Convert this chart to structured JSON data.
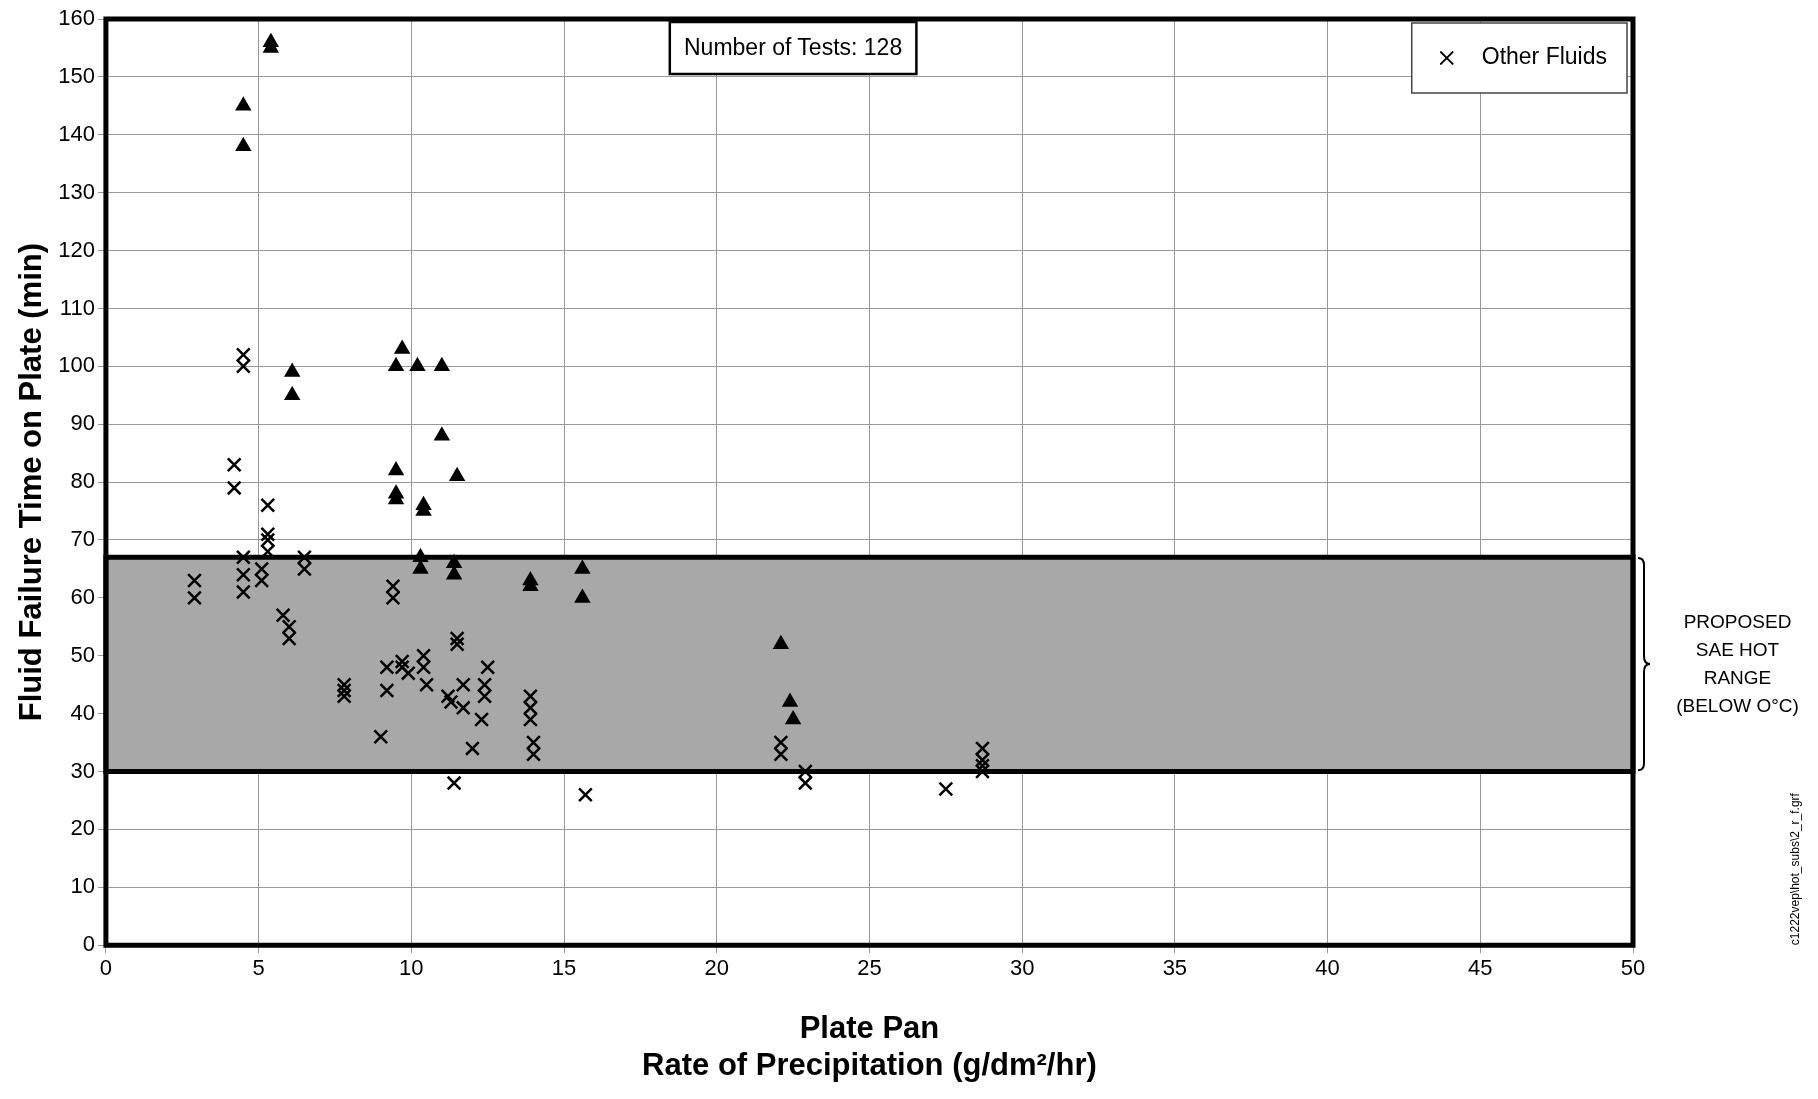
{
  "chart_data": {
    "type": "scatter",
    "xlabel": "Plate Pan\nRate of Precipitation (g/dm²/hr)",
    "ylabel": "Fluid Failure Time on Plate (min)",
    "xlim": [
      0,
      50
    ],
    "xticks": [
      0,
      5,
      10,
      15,
      20,
      25,
      30,
      35,
      40,
      45,
      50
    ],
    "ylim": [
      0,
      160
    ],
    "yticks": [
      0,
      10,
      20,
      30,
      40,
      50,
      60,
      70,
      80,
      90,
      100,
      110,
      120,
      130,
      140,
      150,
      160
    ],
    "grid": true,
    "legend": "top right",
    "series": [
      {
        "name": "Other Fluids",
        "color": "#000000",
        "marker": "cross",
        "x": [
          2.9,
          2.9,
          4.2,
          4.2,
          4.5,
          4.5,
          4.5,
          4.5,
          4.5,
          5.1,
          5.1,
          5.3,
          5.3,
          5.3,
          5.3,
          5.8,
          6.0,
          6.0,
          6.5,
          6.5,
          7.8,
          7.8,
          7.8,
          9.0,
          9.2,
          9.2,
          9.4,
          9.4,
          9.7,
          9.7,
          9.9,
          10.4,
          10.4,
          10.5,
          11.2,
          11.3,
          11.5,
          11.5,
          11.4,
          11.7,
          11.7,
          12.0,
          12.3,
          12.5,
          12.4,
          12.4,
          13.9,
          13.9,
          13.9,
          14.0,
          14.0,
          15.7,
          22.1,
          22.1,
          22.9,
          22.9,
          27.5,
          28.7,
          28.7,
          28.7,
          28.7
        ],
        "values": [
          63,
          60,
          83,
          79,
          102,
          100,
          67,
          64,
          61,
          65,
          63,
          76,
          71,
          70,
          68,
          57,
          55,
          53,
          67,
          65,
          45,
          44,
          43,
          36,
          48,
          44,
          62,
          60,
          49,
          48,
          47,
          50,
          48,
          45,
          43,
          42,
          53,
          52,
          28,
          45,
          41,
          34,
          39,
          48,
          45,
          43,
          43,
          41,
          39,
          35,
          33,
          26,
          35,
          33,
          30,
          28,
          27,
          34,
          32,
          31,
          30
        ]
      },
      {
        "color": "#000000",
        "marker": "triangle",
        "x": [
          4.5,
          4.5,
          5.4,
          5.4,
          6.1,
          6.1,
          9.5,
          9.7,
          10.2,
          11.0,
          9.5,
          9.5,
          9.5,
          10.4,
          10.4,
          11.0,
          11.5,
          10.3,
          10.3,
          11.4,
          11.4,
          13.9,
          13.9,
          15.6,
          15.6,
          22.1,
          22.4,
          22.5
        ],
        "values": [
          145,
          138,
          156,
          155,
          99,
          95,
          100,
          103,
          100,
          100,
          82,
          78,
          77,
          76,
          75,
          88,
          81,
          67,
          65,
          66,
          64,
          63,
          62,
          65,
          60,
          52,
          42,
          39
        ]
      }
    ],
    "bands": [
      {
        "axis": "y",
        "from": 30,
        "to": 67,
        "label": "PROPOSED\nSAE HOT\nRANGE\n(BELOW O°C)",
        "color": "#a8a8a8"
      }
    ],
    "annotations": [
      "Number of Tests: 128",
      "c1222vep\\hot_subs\\2_r_f.grf"
    ]
  }
}
